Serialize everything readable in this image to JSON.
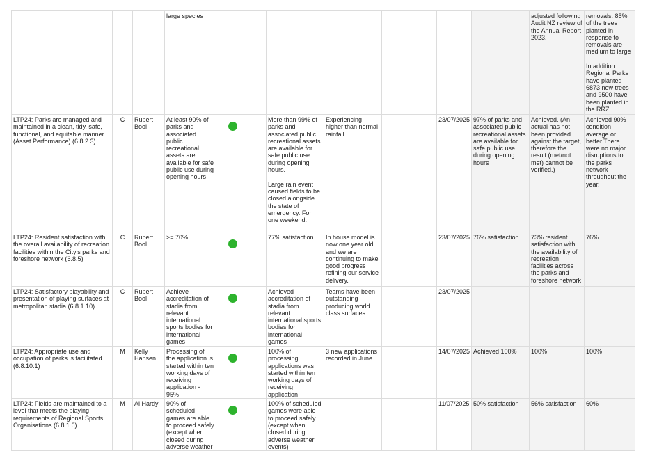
{
  "status_color": "#2db32d",
  "rows": [
    {
      "measure": "",
      "type": "",
      "owner": "",
      "target": "large species",
      "status": "",
      "result": "",
      "comment": "",
      "extra": "",
      "date": "",
      "prior": "",
      "audit": "adjusted following Audit NZ review of the Annual Report 2023.",
      "history": "removals. 85% of the trees planted in response to removals are medium to large\n\nIn addition Regional Parks have planted 6873 new trees and 9500 have been planted in the RRZ."
    },
    {
      "measure": "LTP24: Parks are managed and maintained in a clean, tidy, safe, functional, and equitable manner (Asset Performance)  (6.8.2.3)",
      "type": "C",
      "owner": "Rupert Bool",
      "target": "At least 90% of parks and associated public recreational assets are available for safe public use during opening hours",
      "status": "green",
      "result": "More than 99% of parks and associated public recreational assets are available for safe public use during opening hours.\n\nLarge rain event caused fields to be closed alongside the state of emergency. For one weekend.",
      "comment": "Experiencing higher than normal rainfall.",
      "extra": "",
      "date": "23/07/2025",
      "prior": "97% of parks and associated public recreational assets are available for safe public use during opening hours",
      "audit": "Achieved. (An actual has not been provided against the target, therefore the result (met/not met) cannot be verified.)",
      "history": "Achieved 90% condition average or better.There were no major disruptions to the parks network throughout the year."
    },
    {
      "measure": "LTP24: Resident satisfaction with the overall availability of recreation facilities within the City's parks and foreshore network (6.8.5)",
      "type": "C",
      "owner": "Rupert Bool",
      "target": ">= 70%",
      "status": "green",
      "result": "77% satisfaction",
      "comment": "In house model is now one year old and we are continuing to make good progress refining our service delivery.",
      "extra": "",
      "date": "23/07/2025",
      "prior": "76% satisfaction",
      "audit": "73% resident satisfaction with the availability of recreation facilities across the parks and foreshore network",
      "history": "76%"
    },
    {
      "measure": "LTP24: Satisfactory playability and presentation of playing surfaces at metropolitan stadia  (6.8.1.10)",
      "type": "C",
      "owner": "Rupert Bool",
      "target": "Achieve accreditation of stadia from relevant international sports bodies for international games",
      "status": "green",
      "result": "Achieved accreditation of stadia from relevant international sports bodies for international games",
      "comment": "Teams have been outstanding producing world class surfaces.",
      "extra": "",
      "date": "23/07/2025",
      "prior": "",
      "audit": "",
      "history": ""
    },
    {
      "measure": "LTP24: Appropriate use and occupation of parks is facilitated (6.8.10.1)",
      "type": "M",
      "owner": "Kelly Hansen",
      "target": "Processing of the application is started within ten working days of receiving application - 95%",
      "status": "green",
      "result": "100% of processing applications was started within ten working days of receiving application",
      "comment": "3 new applications recorded in June",
      "extra": "",
      "date": "14/07/2025",
      "prior": "Achieved 100%",
      "audit": "100%",
      "history": "100%"
    },
    {
      "measure": "LTP24: Fields are maintained to a level that meets the playing requirements of Regional Sports Organisations (6.8.1.6)",
      "type": "M",
      "owner": "Al Hardy",
      "target": "90% of scheduled games are able to proceed safely (except when closed during adverse weather",
      "status": "green",
      "result": "100% of scheduled games were able to proceed safely (except when closed during adverse weather events)",
      "comment": "",
      "extra": "",
      "date": "11/07/2025",
      "prior": "50% satisfaction",
      "audit": "56% satisfaction",
      "history": "60%"
    }
  ]
}
